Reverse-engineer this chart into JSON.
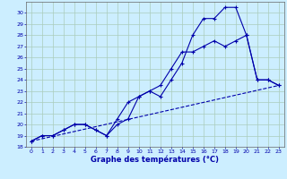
{
  "xlabel": "Graphe des températures (°C)",
  "bg_color": "#cceeff",
  "grid_color": "#aaccbb",
  "line_color": "#0000aa",
  "xlim": [
    -0.5,
    23.5
  ],
  "ylim": [
    18,
    31
  ],
  "xticks": [
    0,
    1,
    2,
    3,
    4,
    5,
    6,
    7,
    8,
    9,
    10,
    11,
    12,
    13,
    14,
    15,
    16,
    17,
    18,
    19,
    20,
    21,
    22,
    23
  ],
  "yticks": [
    18,
    19,
    20,
    21,
    22,
    23,
    24,
    25,
    26,
    27,
    28,
    29,
    30
  ],
  "series1_x": [
    0,
    1,
    2,
    3,
    4,
    5,
    6,
    7,
    8,
    9,
    10,
    11,
    12,
    13,
    14,
    15,
    16,
    17,
    18,
    19,
    20,
    21,
    22,
    23
  ],
  "series1_y": [
    18.5,
    19,
    19,
    19.5,
    20,
    20,
    19.5,
    19,
    20,
    20.5,
    22.5,
    23,
    22.5,
    24,
    25.5,
    28,
    29.5,
    29.5,
    30.5,
    30.5,
    28,
    24,
    24,
    23.5
  ],
  "series2_x": [
    0,
    1,
    2,
    3,
    4,
    5,
    6,
    7,
    8,
    9,
    10,
    11,
    12,
    13,
    14,
    15,
    16,
    17,
    18,
    19,
    20,
    21,
    22,
    23
  ],
  "series2_y": [
    18.5,
    19,
    19,
    19.5,
    20,
    20,
    19.5,
    19,
    20.5,
    22,
    22.5,
    23,
    23.5,
    25,
    26.5,
    26.5,
    27,
    27.5,
    27,
    27.5,
    28,
    24,
    24,
    23.5
  ],
  "series3_x": [
    0,
    23
  ],
  "series3_y": [
    18.5,
    23.5
  ]
}
